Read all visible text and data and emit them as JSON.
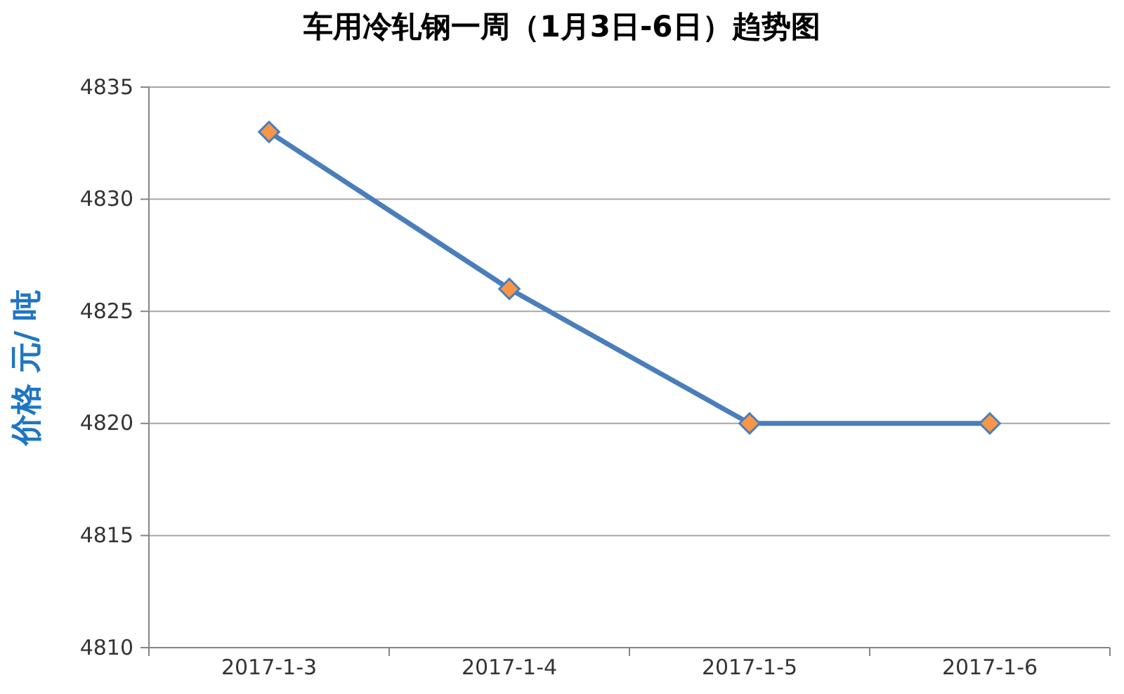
{
  "chart_data": {
    "type": "line",
    "title": "车用冷轧钢一周（1月3日-6日）趋势图",
    "ylabel": "价格 元/ 吨",
    "categories": [
      "2017-1-3",
      "2017-1-4",
      "2017-1-5",
      "2017-1-6"
    ],
    "series": [
      {
        "color": "#4a7ebb",
        "values": [
          4833,
          4826,
          4820,
          4820
        ]
      }
    ],
    "ylim": [
      4810,
      4835
    ],
    "yticks": [
      4810,
      4815,
      4820,
      4825,
      4830,
      4835
    ],
    "grid": "y",
    "marker": "diamond",
    "line_style": "solid"
  }
}
